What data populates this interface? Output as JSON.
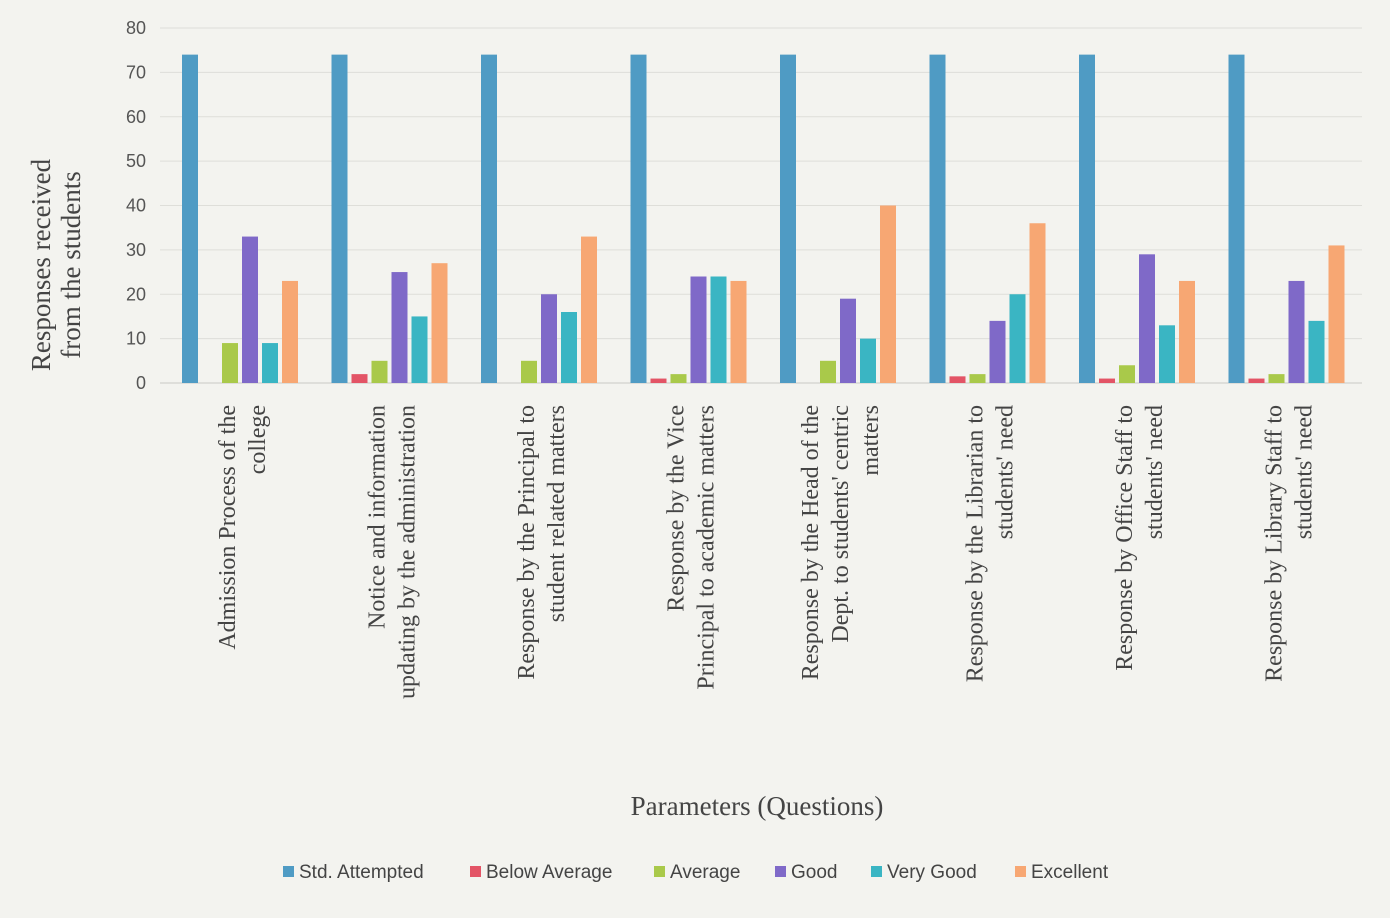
{
  "chart_data": {
    "type": "bar",
    "ylabel_line1": "Responses received",
    "ylabel_line2": "from the students",
    "xlabel": "Parameters (Questions)",
    "ylim": [
      0,
      80
    ],
    "yticks": [
      0,
      10,
      20,
      30,
      40,
      50,
      60,
      70,
      80
    ],
    "grid": true,
    "legend_position": "bottom",
    "categories": [
      {
        "lines": [
          "Admission Process of the",
          "college"
        ]
      },
      {
        "lines": [
          "Notice and information",
          "updating by the administration"
        ]
      },
      {
        "lines": [
          "Response by the Principal to",
          "student related matters"
        ]
      },
      {
        "lines": [
          "Response by the Vice",
          "Principal to academic matters"
        ]
      },
      {
        "lines": [
          "Response by the Head of the",
          "Dept. to students' centric",
          "matters"
        ]
      },
      {
        "lines": [
          "Response by the Librarian to",
          "students' need"
        ]
      },
      {
        "lines": [
          "Response by Office Staff to",
          "students' need"
        ]
      },
      {
        "lines": [
          "Response by Library Staff to",
          "students' need"
        ]
      }
    ],
    "series": [
      {
        "name": "Std. Attempted",
        "color": "#4f9bc4",
        "values": [
          74,
          74,
          74,
          74,
          74,
          74,
          74,
          74
        ]
      },
      {
        "name": "Below Average",
        "color": "#e35466",
        "values": [
          0,
          2,
          0,
          1,
          0,
          1.5,
          1,
          1
        ]
      },
      {
        "name": "Average",
        "color": "#a9c94a",
        "values": [
          9,
          5,
          5,
          2,
          5,
          2,
          4,
          2
        ]
      },
      {
        "name": "Good",
        "color": "#7f69c8",
        "values": [
          33,
          25,
          20,
          24,
          19,
          14,
          29,
          23
        ]
      },
      {
        "name": "Very Good",
        "color": "#3ab5c3",
        "values": [
          9,
          15,
          16,
          24,
          10,
          20,
          13,
          14
        ]
      },
      {
        "name": "Excellent",
        "color": "#f7a773",
        "values": [
          23,
          27,
          33,
          23,
          40,
          36,
          23,
          31
        ]
      }
    ]
  }
}
